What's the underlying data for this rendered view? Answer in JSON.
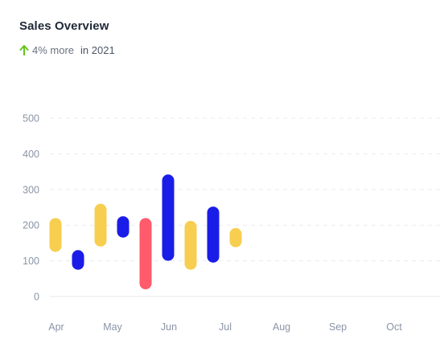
{
  "header": {
    "title": "Sales Overview",
    "trend_text": "4% more",
    "period_text": "in 2021",
    "trend_icon": "arrow-up-icon",
    "trend_color": "#65c31a"
  },
  "chart_data": {
    "type": "bar",
    "subtype": "floating-range",
    "title": "Sales Overview",
    "xlabel": "",
    "ylabel": "",
    "categories": [
      "Apr",
      "May",
      "Jun",
      "Jul",
      "Aug",
      "Sep",
      "Oct"
    ],
    "ylim": [
      0,
      500
    ],
    "yticks": [
      0,
      100,
      200,
      300,
      400,
      500
    ],
    "grid": true,
    "legend": "none",
    "bars": [
      {
        "x": 0.0,
        "low": 125,
        "high": 220,
        "color": "#f7ce4f"
      },
      {
        "x": 0.4,
        "low": 75,
        "high": 130,
        "color": "#1a1de8"
      },
      {
        "x": 0.8,
        "low": 140,
        "high": 260,
        "color": "#f7ce4f"
      },
      {
        "x": 1.2,
        "low": 165,
        "high": 225,
        "color": "#1a1de8"
      },
      {
        "x": 1.6,
        "low": 20,
        "high": 220,
        "color": "#ff5b6b"
      },
      {
        "x": 2.0,
        "low": 100,
        "high": 342,
        "color": "#1a1de8"
      },
      {
        "x": 2.4,
        "low": 75,
        "high": 212,
        "color": "#f7ce4f"
      },
      {
        "x": 2.8,
        "low": 95,
        "high": 252,
        "color": "#1a1de8"
      },
      {
        "x": 3.2,
        "low": 138,
        "high": 192,
        "color": "#f7ce4f"
      }
    ]
  }
}
